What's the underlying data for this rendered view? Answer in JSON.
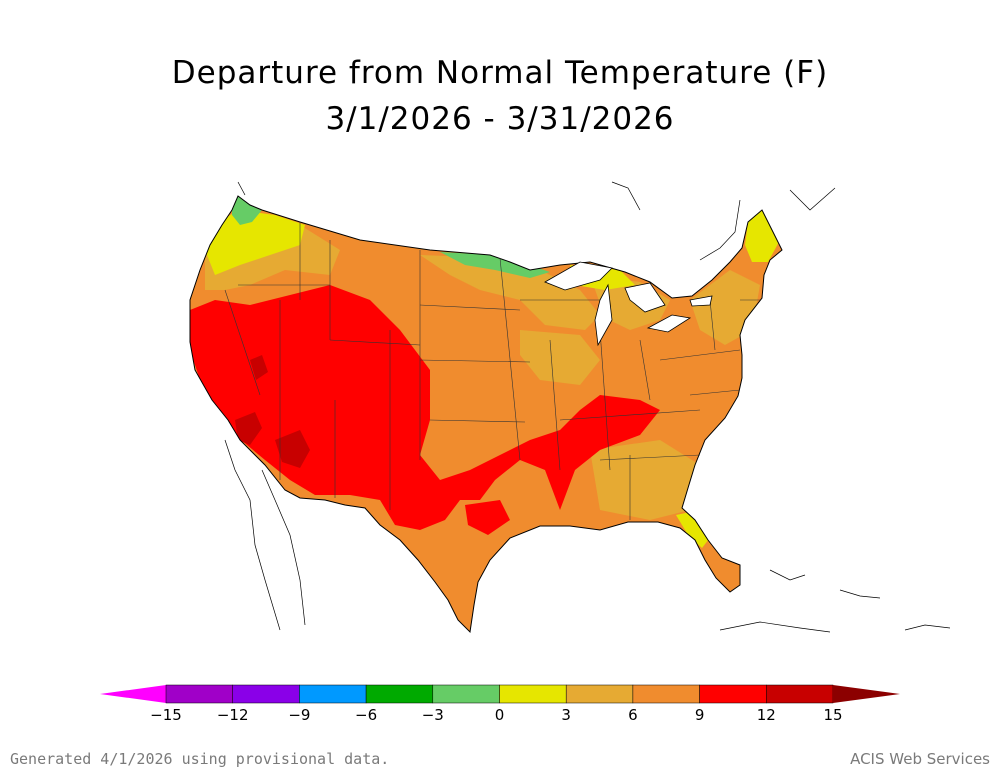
{
  "title": "Departure from Normal Temperature (F)",
  "subtitle": "3/1/2026 - 3/31/2026",
  "legend": {
    "ticks": [
      "−15",
      "−12",
      "−9",
      "−6",
      "−3",
      "0",
      "3",
      "6",
      "9",
      "12",
      "15"
    ],
    "bins": [
      {
        "range": "< -15",
        "color": "#ff00ff"
      },
      {
        "range": "-15 to -12",
        "color": "#a000c8"
      },
      {
        "range": "-12 to -9",
        "color": "#8a00e8"
      },
      {
        "range": "-9 to -6",
        "color": "#0099ff"
      },
      {
        "range": "-6 to -3",
        "color": "#00aa00"
      },
      {
        "range": "-3 to 0",
        "color": "#66cc66"
      },
      {
        "range": "0 to 3",
        "color": "#e6e600"
      },
      {
        "range": "3 to 6",
        "color": "#e6aa33"
      },
      {
        "range": "6 to 9",
        "color": "#f08c2e"
      },
      {
        "range": "9 to 12",
        "color": "#ff0000"
      },
      {
        "range": "12 to 15",
        "color": "#c80000"
      },
      {
        "range": "> 15",
        "color": "#8c0000"
      }
    ]
  },
  "map_colors": {
    "base": "#f08c2e",
    "warm": "#ff0000",
    "hot": "#c80000",
    "mild": "#e6aa33",
    "near_normal": "#e6e600",
    "cool": "#66cc66"
  },
  "footer": {
    "left": "Generated 4/1/2026 using provisional data.",
    "right": "ACIS Web Services"
  }
}
